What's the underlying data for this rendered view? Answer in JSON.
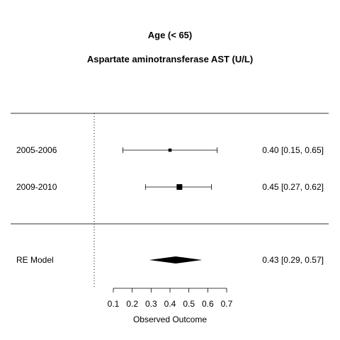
{
  "chart_data": {
    "type": "forest",
    "title": "Age (< 65)",
    "subtitle": "Aspartate aminotransferase AST (U/L)",
    "xlabel": "Observed Outcome",
    "xlim": [
      0.1,
      0.7
    ],
    "xticks": [
      0.1,
      0.2,
      0.3,
      0.4,
      0.5,
      0.6,
      0.7
    ],
    "tick_labels": [
      "0.1",
      "0.2",
      "0.3",
      "0.4",
      "0.5",
      "0.6",
      "0.7"
    ],
    "reference_line": 0,
    "studies": [
      {
        "label": "2005-2006",
        "estimate": 0.4,
        "ci_low": 0.15,
        "ci_high": 0.65,
        "annotation": "0.40 [0.15, 0.65]",
        "weight": 0.15
      },
      {
        "label": "2009-2010",
        "estimate": 0.45,
        "ci_low": 0.27,
        "ci_high": 0.62,
        "annotation": "0.45 [0.27, 0.62]",
        "weight": 0.85
      }
    ],
    "summary": {
      "label": "RE Model",
      "estimate": 0.43,
      "ci_low": 0.29,
      "ci_high": 0.57,
      "annotation": "0.43 [0.29, 0.57]"
    }
  }
}
